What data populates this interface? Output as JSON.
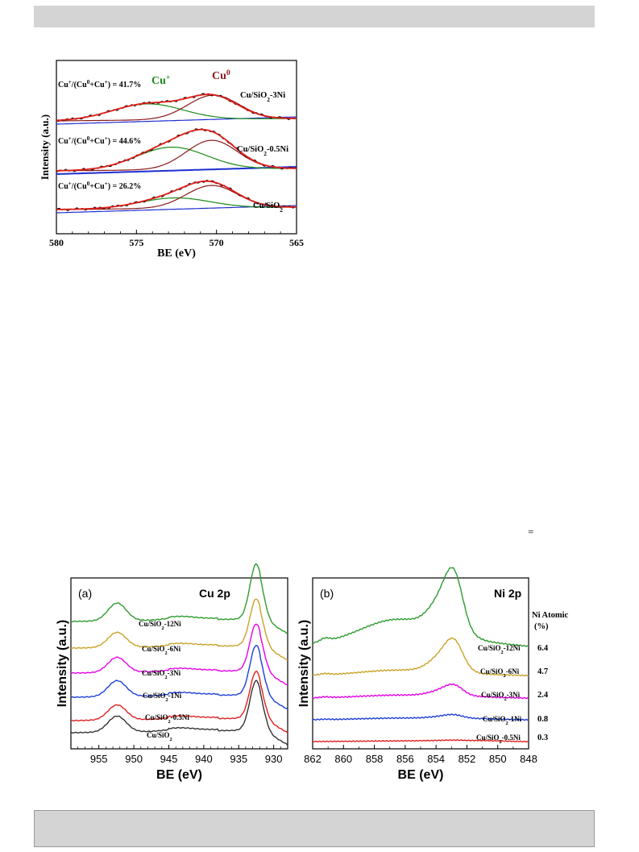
{
  "page": {
    "equation_mark": "="
  },
  "chart_data": [
    {
      "id": "top",
      "type": "line",
      "xlabel": "BE (eV)",
      "ylabel": "Intensity (a.u.)",
      "xlim": [
        580,
        565
      ],
      "x_ticks": [
        "580",
        "575",
        "570",
        "565"
      ],
      "peak_labels": [
        {
          "text": "Cu",
          "sup": "+",
          "color": "#1a8a1a"
        },
        {
          "text": "Cu",
          "sup": "0",
          "color": "#8b1a1a"
        }
      ],
      "samples": [
        {
          "name": "Cu/SiO2-3Ni",
          "ratio": "41.7%",
          "cu_plus_center": 574.3,
          "cu0_center": 570.2
        },
        {
          "name": "Cu/SiO2-0.5Ni",
          "ratio": "44.6%",
          "cu_plus_center": 572.8,
          "cu0_center": 570.3
        },
        {
          "name": "Cu/SiO2",
          "ratio": "26.2%",
          "cu_plus_center": 572.6,
          "cu0_center": 570.3
        }
      ],
      "ratio_label": {
        "a": "Cu",
        "b": "+",
        "c": "/(Cu",
        "d": "0",
        "e": "+Cu",
        "f": "+",
        "g": ") = "
      },
      "series_colors": {
        "raw": "#000000",
        "fit": "#e0201c",
        "cu0": "#8b1a1a",
        "cu_plus": "#1a8a1a",
        "background": "#1f2fd0"
      }
    },
    {
      "id": "a",
      "type": "line",
      "panel_label": "(a)",
      "title": "Cu 2p",
      "xlabel": "BE (eV)",
      "ylabel": "Intensity (a.u.)",
      "xlim": [
        959,
        928
      ],
      "x_ticks": [
        955,
        950,
        945,
        940,
        935,
        930
      ],
      "series": [
        {
          "name": "Cu/SiO2-12Ni",
          "color": "#2e9b2e",
          "value": ""
        },
        {
          "name": "Cu/SiO2-6Ni",
          "color": "#c9a227",
          "value": ""
        },
        {
          "name": "Cu/SiO2-3Ni",
          "color": "#e600e6",
          "value": ""
        },
        {
          "name": "Cu/SiO2-1Ni",
          "color": "#1c3fd6",
          "value": ""
        },
        {
          "name": "Cu/SiO2-0.5Ni",
          "color": "#e02020",
          "value": ""
        },
        {
          "name": "Cu/SiO2",
          "color": "#333333",
          "value": ""
        }
      ],
      "peaks": [
        952.3,
        932.5
      ]
    },
    {
      "id": "b",
      "type": "line",
      "panel_label": "(b)",
      "title": "Ni 2p",
      "xlabel": "BE (eV)",
      "ylabel": "Intensity (a.u.)",
      "xlim": [
        862,
        848
      ],
      "x_ticks": [
        862,
        860,
        858,
        856,
        854,
        852,
        850,
        848
      ],
      "right_header": [
        "Ni Atomic",
        "(%)"
      ],
      "series": [
        {
          "name": "Cu/SiO2-12Ni",
          "color": "#2e9b2e",
          "value": "6.4"
        },
        {
          "name": "Cu/SiO2-6Ni",
          "color": "#c9a227",
          "value": "4.7"
        },
        {
          "name": "Cu/SiO2-3Ni",
          "color": "#e600e6",
          "value": "2.4"
        },
        {
          "name": "Cu/SiO2-1Ni",
          "color": "#1c3fd6",
          "value": "0.8"
        },
        {
          "name": "Cu/SiO2-0.5Ni",
          "color": "#e02020",
          "value": "0.3"
        }
      ],
      "peak": 852.7
    }
  ]
}
